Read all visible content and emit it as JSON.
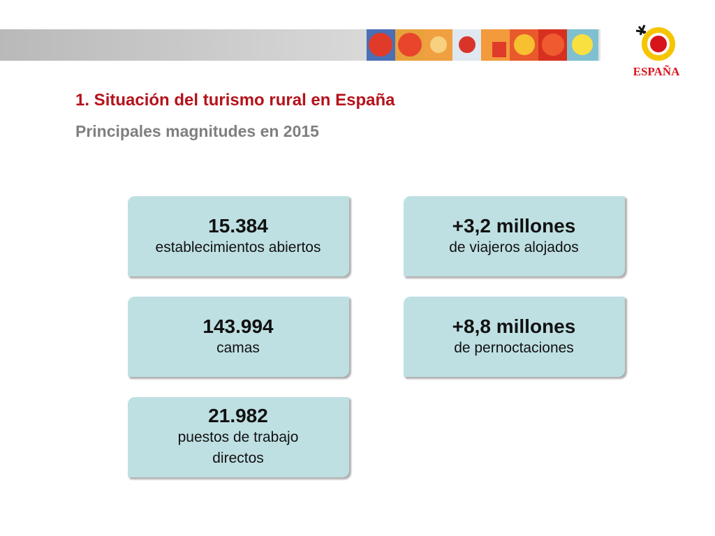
{
  "header": {
    "title": "1. Situación del turismo rural en España",
    "subtitle": "Principales magnitudes en 2015"
  },
  "logo": {
    "text": "ESPAÑA"
  },
  "cards": [
    {
      "value": "15.384",
      "label": "establecimientos abiertos"
    },
    {
      "value": "+3,2 millones",
      "label": "de viajeros alojados"
    },
    {
      "value": "143.994",
      "label": "camas"
    },
    {
      "value": "+8,8 millones",
      "label": "de pernoctaciones"
    },
    {
      "value": "21.982",
      "label": "puestos de trabajo directos"
    }
  ]
}
